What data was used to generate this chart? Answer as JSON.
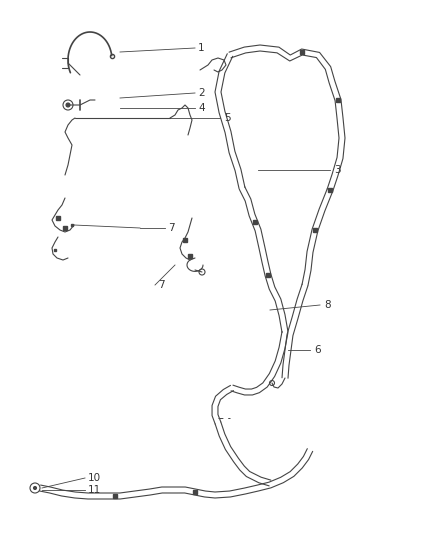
{
  "bg_color": "#ffffff",
  "line_color": "#444444",
  "label_color": "#333333",
  "fig_w": 4.38,
  "fig_h": 5.33,
  "dpi": 100
}
